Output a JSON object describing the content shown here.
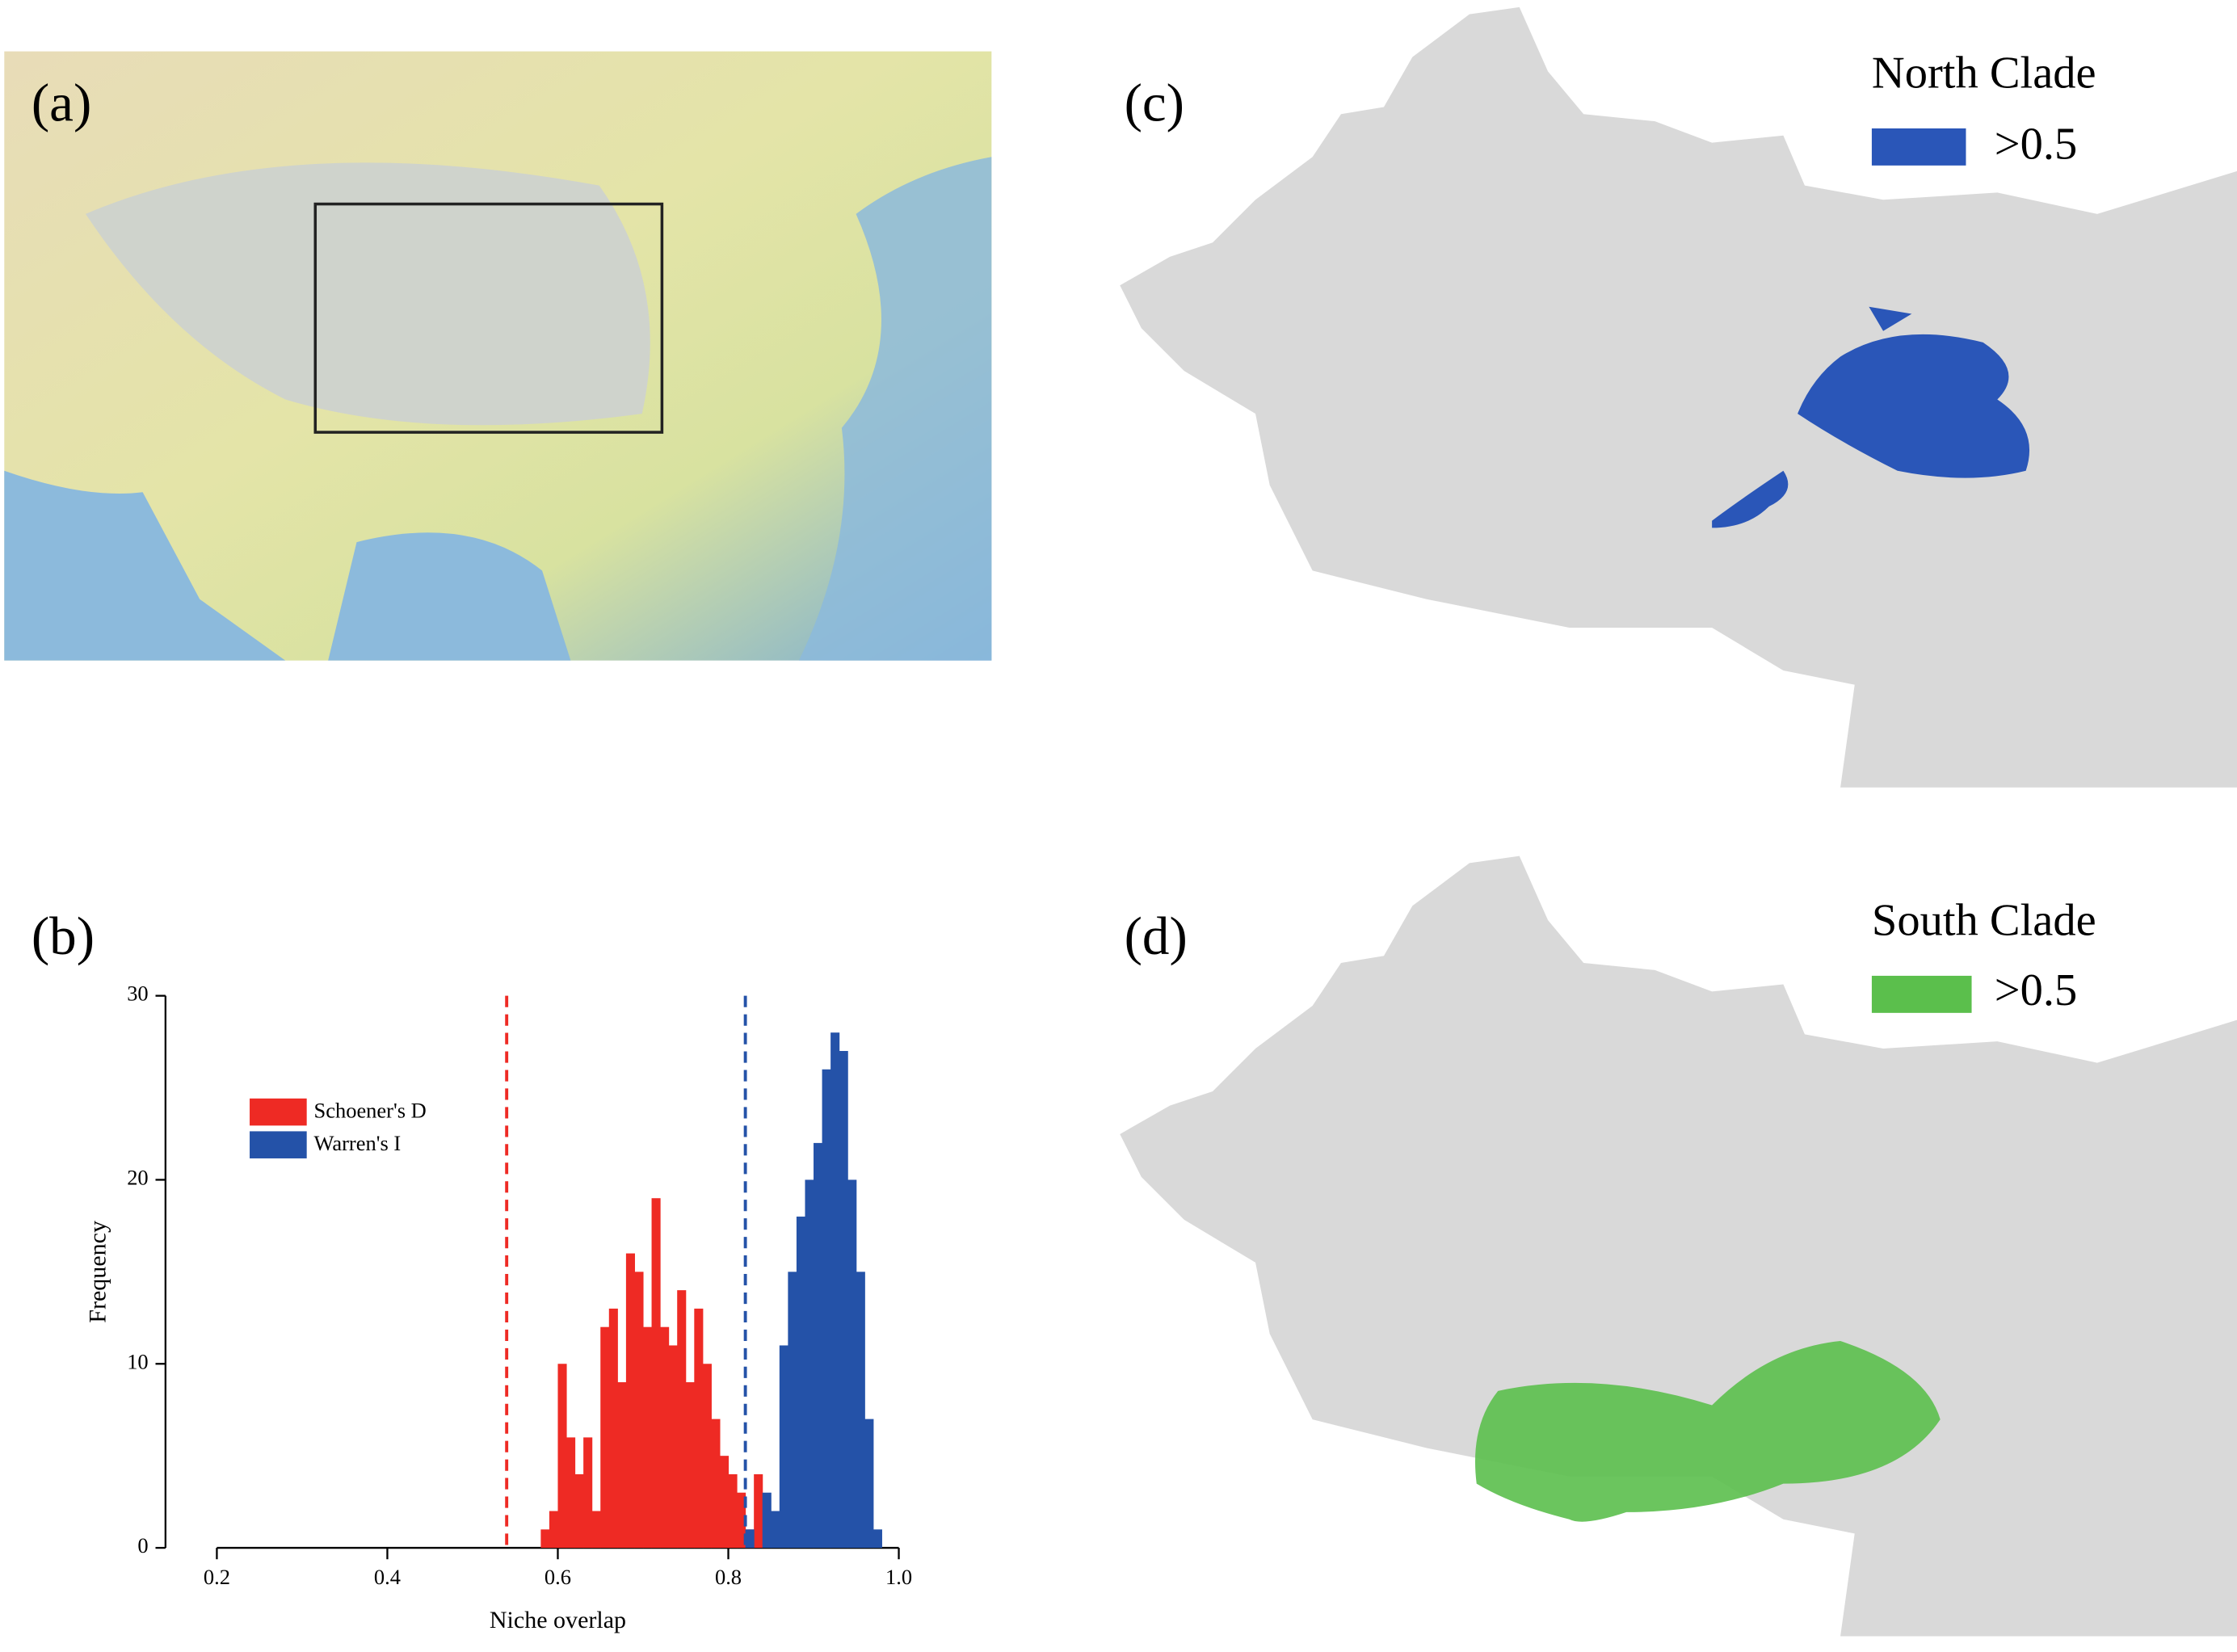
{
  "panels": {
    "a": "(a)",
    "b": "(b)",
    "c": "(c)",
    "d": "(d)"
  },
  "maps": [
    {
      "title": "North Clade",
      "legend": ">0.5",
      "color": "#2a56b8"
    },
    {
      "title": "South Clade",
      "legend": ">0.5",
      "color": "#5bbf4c"
    }
  ],
  "chart_data": {
    "type": "histogram",
    "xlabel": "Niche overlap",
    "ylabel": "Frequency",
    "xlim": [
      0.2,
      1.0
    ],
    "ylim": [
      0,
      30
    ],
    "xticks": [
      0.2,
      0.4,
      0.6,
      0.8,
      {
        "value": 1,
        "label": "1.0"
      }
    ],
    "yticks": [
      0,
      10,
      20,
      30
    ],
    "legend": "upper left",
    "series": [
      {
        "name": "Schoener's D",
        "color": "#ee2a24",
        "bins": [
          0.58,
          0.59,
          0.6,
          0.61,
          0.62,
          0.63,
          0.64,
          0.65,
          0.66,
          0.67,
          0.68,
          0.69,
          0.7,
          0.71,
          0.72,
          0.73,
          0.74,
          0.75,
          0.76,
          0.77,
          0.78,
          0.79,
          0.8,
          0.81,
          0.82,
          0.83,
          0.84
        ],
        "values": [
          1,
          2,
          10,
          6,
          4,
          6,
          2,
          12,
          13,
          9,
          16,
          15,
          12,
          19,
          12,
          11,
          14,
          9,
          13,
          10,
          7,
          5,
          4,
          3,
          1,
          4
        ]
      },
      {
        "name": "Warren's I",
        "color": "#2452a8",
        "bins": [
          0.82,
          0.83,
          0.84,
          0.85,
          0.86,
          0.87,
          0.88,
          0.89,
          0.9,
          0.91,
          0.92,
          0.93,
          0.94,
          0.95,
          0.96,
          0.97,
          0.98
        ],
        "values": [
          1,
          0,
          3,
          2,
          11,
          15,
          18,
          20,
          22,
          26,
          28,
          27,
          20,
          15,
          7,
          1
        ]
      }
    ],
    "vlines": [
      {
        "x": 0.54,
        "color": "#ee2a24"
      },
      {
        "x": 0.82,
        "color": "#2452a8"
      }
    ]
  }
}
